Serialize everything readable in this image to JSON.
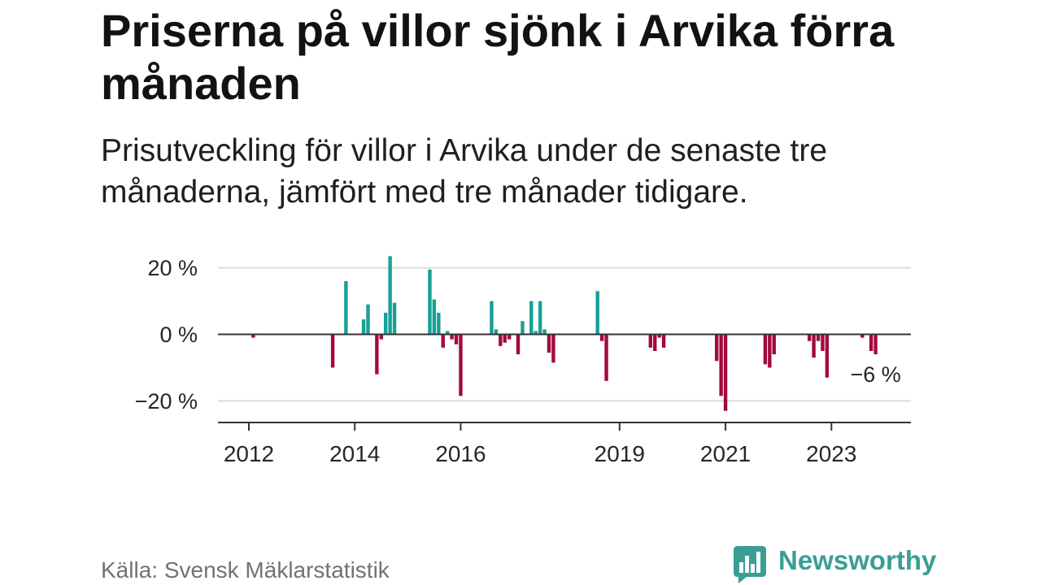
{
  "chart_data": {
    "type": "bar",
    "title": "Priserna på villor sjönk i Arvika förra månaden",
    "subtitle": "Prisutveckling för villor i Arvika under de senaste tre månaderna, jämfört med tre månader tidigare.",
    "x_ticks": [
      "2012",
      "2014",
      "2016",
      "2019",
      "2021",
      "2023"
    ],
    "y_ticks": [
      {
        "value": 20,
        "label": "20 %"
      },
      {
        "value": 0,
        "label": "0 %"
      },
      {
        "value": -20,
        "label": "−20 %"
      }
    ],
    "xlim": [
      "2011-06",
      "2024-07"
    ],
    "ylim": [
      -26.5,
      27
    ],
    "grid": true,
    "colors": {
      "positive": "#16a096",
      "negative": "#a30a3c"
    },
    "series": [
      {
        "values": [
          {
            "x": "2012-02",
            "y": -1
          },
          {
            "x": "2013-08",
            "y": -10
          },
          {
            "x": "2013-11",
            "y": 16
          },
          {
            "x": "2014-03",
            "y": 4.5
          },
          {
            "x": "2014-04",
            "y": 9
          },
          {
            "x": "2014-06",
            "y": -12
          },
          {
            "x": "2014-07",
            "y": -1.5
          },
          {
            "x": "2014-08",
            "y": 6.5
          },
          {
            "x": "2014-09",
            "y": 23.5
          },
          {
            "x": "2014-10",
            "y": 9.5
          },
          {
            "x": "2015-06",
            "y": 19.5
          },
          {
            "x": "2015-07",
            "y": 10.5
          },
          {
            "x": "2015-08",
            "y": 6.5
          },
          {
            "x": "2015-09",
            "y": -4
          },
          {
            "x": "2015-10",
            "y": 1
          },
          {
            "x": "2015-11",
            "y": -1.5
          },
          {
            "x": "2015-12",
            "y": -3
          },
          {
            "x": "2016-01",
            "y": -18.5
          },
          {
            "x": "2016-08",
            "y": 10
          },
          {
            "x": "2016-09",
            "y": 1.5
          },
          {
            "x": "2016-10",
            "y": -3.5
          },
          {
            "x": "2016-11",
            "y": -2.5
          },
          {
            "x": "2016-12",
            "y": -1.5
          },
          {
            "x": "2017-02",
            "y": -6
          },
          {
            "x": "2017-03",
            "y": 4
          },
          {
            "x": "2017-05",
            "y": 10
          },
          {
            "x": "2017-06",
            "y": 1
          },
          {
            "x": "2017-07",
            "y": 10
          },
          {
            "x": "2017-08",
            "y": 1.5
          },
          {
            "x": "2017-09",
            "y": -5.5
          },
          {
            "x": "2017-10",
            "y": -8.5
          },
          {
            "x": "2018-08",
            "y": 13
          },
          {
            "x": "2018-09",
            "y": -2
          },
          {
            "x": "2018-10",
            "y": -14
          },
          {
            "x": "2019-08",
            "y": -4
          },
          {
            "x": "2019-09",
            "y": -5
          },
          {
            "x": "2019-10",
            "y": -1
          },
          {
            "x": "2019-11",
            "y": -4
          },
          {
            "x": "2020-11",
            "y": -8
          },
          {
            "x": "2020-12",
            "y": -18.5
          },
          {
            "x": "2021-01",
            "y": -23
          },
          {
            "x": "2021-10",
            "y": -9
          },
          {
            "x": "2021-11",
            "y": -10
          },
          {
            "x": "2021-12",
            "y": -6
          },
          {
            "x": "2022-08",
            "y": -2
          },
          {
            "x": "2022-09",
            "y": -7
          },
          {
            "x": "2022-10",
            "y": -2
          },
          {
            "x": "2022-11",
            "y": -5
          },
          {
            "x": "2022-12",
            "y": -13
          },
          {
            "x": "2023-08",
            "y": -1
          },
          {
            "x": "2023-10",
            "y": -5
          },
          {
            "x": "2023-11",
            "y": -6
          }
        ]
      }
    ],
    "annotations": [
      {
        "x": "2023-11",
        "text": "−6 %"
      }
    ]
  },
  "source": "Källa: Svensk Mäklarstatistik",
  "logo": {
    "icon": "chart-speech-bubble-icon",
    "text": "Newsworthy",
    "color": "#3a9e95"
  }
}
